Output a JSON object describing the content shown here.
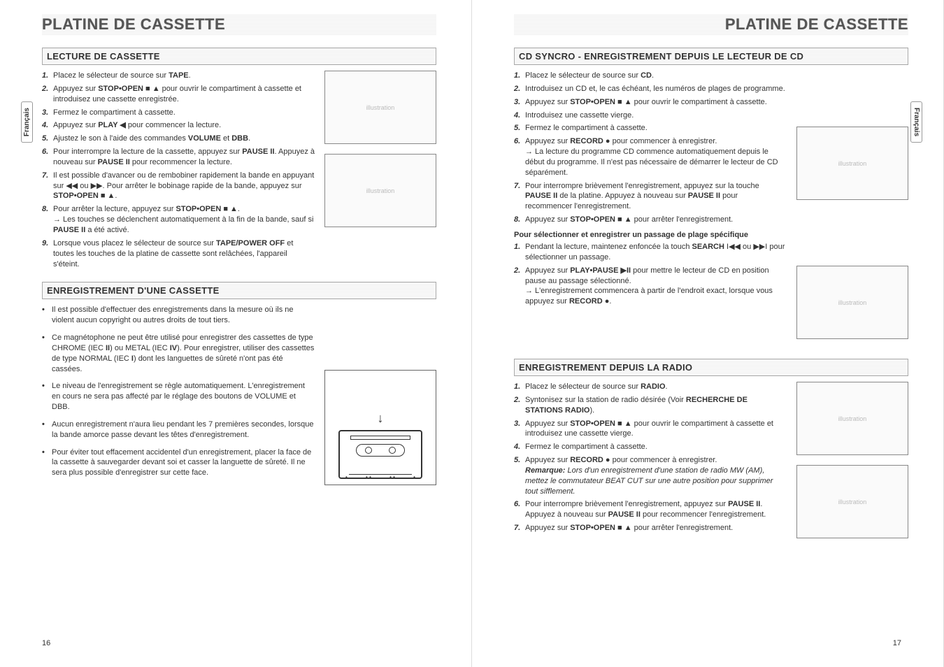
{
  "lang_tab": "Français",
  "page_left": {
    "title": "PLATINE DE CASSETTE",
    "page_number": "16",
    "section1": {
      "heading": "LECTURE DE CASSETTE",
      "items": [
        "Placez le sélecteur de source sur <b>TAPE</b>.",
        "Appuyez sur <b>STOP•OPEN ■ ▲</b> pour ouvrir le compartiment à cassette et introduisez une cassette enregistrée.",
        "Fermez le compartiment à cassette.",
        "Appuyez sur <b>PLAY ◀</b> pour commencer la lecture.",
        "Ajustez le son à l'aide des commandes <b>VOLUME</b> et <b>DBB</b>.",
        "Pour interrompre la lecture de la cassette, appuyez sur <b>PAUSE II</b>. Appuyez à nouveau sur <b>PAUSE II</b> pour recommencer la lecture.",
        "Il est possible d'avancer ou de rembobiner rapidement la bande en appuyant sur ◀◀ ou ▶▶. Pour arrêter le bobinage rapide de la bande, appuyez sur <b>STOP•OPEN ■ ▲</b>.",
        "Pour arrêter la lecture, appuyez sur <b>STOP•OPEN ■ ▲</b>.<br>→ Les touches se déclenchent automatiquement à la fin de la bande, sauf si <b>PAUSE II</b> a été activé.",
        "Lorsque vous placez le sélecteur de source sur <b>TAPE/POWER OFF</b> et toutes les touches de la platine de cassette sont relâchées, l'appareil s'éteint."
      ]
    },
    "section2": {
      "heading": "ENREGISTREMENT D'UNE CASSETTE",
      "bullets": [
        "Il est possible d'effectuer des enregistrements dans la mesure où ils ne violent aucun copyright ou autres droits de tout tiers.",
        "Ce magnétophone ne peut être utilisé pour enregistrer des cassettes de type CHROME (IEC <b>II</b>) ou METAL (IEC <b>IV</b>). Pour enregistrer, utiliser des cassettes de type NORMAL (IEC <b>I</b>) dont les languettes de sûreté n'ont pas été cassées.",
        "Le niveau de l'enregistrement se règle automatiquement. L'enregistrement en cours ne sera pas affecté par le réglage des boutons de VOLUME et DBB.",
        "Aucun enregistrement n'aura lieu pendant les 7 premières secondes, lorsque la bande amorce passe devant les têtes d'enregistrement.",
        "Pour éviter tout effacement accidentel d'un enregistrement, placer la face de la cassette à sauvegarder devant soi et casser la languette de sûreté. Il ne sera plus possible d'enregistrer sur cette face."
      ]
    }
  },
  "page_right": {
    "title": "PLATINE DE CASSETTE",
    "page_number": "17",
    "section1": {
      "heading": "CD SYNCRO - ENREGISTREMENT DEPUIS LE LECTEUR DE CD",
      "items": [
        "Placez le sélecteur de source sur <b>CD</b>.",
        "Introduisez un CD et, le cas échéant, les numéros de plages de programme.",
        "Appuyez sur <b>STOP•OPEN ■ ▲</b> pour ouvrir le compartiment à cassette.",
        "Introduisez une cassette vierge.",
        "Fermez le compartiment à cassette.",
        "Appuyez sur <b>RECORD ●</b> pour commencer à enregistrer.<br>→ La lecture du programme CD commence automatiquement depuis le début du programme. Il n'est pas nécessaire de démarrer le lecteur de CD séparément.",
        "Pour interrompre brièvement l'enregistrement, appuyez sur la touche <b>PAUSE II</b> de la platine. Appuyez à nouveau sur <b>PAUSE II</b> pour recommencer l'enregistrement.",
        "Appuyez sur <b>STOP•OPEN ■ ▲</b> pour arrêter l'enregistrement."
      ],
      "subhead": "Pour sélectionner et enregistrer un passage de plage spécifique",
      "sub_items": [
        "Pendant la lecture, maintenez enfoncée la touch <b>SEARCH</b> I◀◀ ou ▶▶I pour sélectionner un passage.",
        "Appuyez sur <b>PLAY•PAUSE ▶II</b> pour mettre le lecteur de CD en position pause au passage sélectionné.<br>→ L'enregistrement commencera à partir de l'endroit exact, lorsque vous appuyez sur <b>RECORD ●</b>."
      ]
    },
    "section2": {
      "heading": "ENREGISTREMENT DEPUIS LA RADIO",
      "items": [
        "Placez le sélecteur de source sur <b>RADIO</b>.",
        "Syntonisez sur la station de radio désirée (Voir <b>RECHERCHE DE STATIONS RADIO</b>).",
        "Appuyez sur <b>STOP•OPEN ■ ▲</b> pour ouvrir le compartiment à cassette et introduisez une cassette vierge.",
        "Fermez le compartiment à cassette.",
        "Appuyez sur <b>RECORD ●</b> pour commencer à enregistrer.<br><b><i>Remarque:</i></b> <i>Lors d'un enregistrement d'une station de radio MW (AM), mettez le commutateur BEAT CUT sur une autre position pour supprimer tout sifflement.</i>",
        "Pour interrompre brièvement l'enregistrement, appuyez sur <b>PAUSE II</b>. Appuyez à nouveau sur <b>PAUSE II</b> pour recommencer l'enregistrement.",
        "Appuyez sur <b>STOP•OPEN ■ ▲</b> pour arrêter l'enregistrement."
      ]
    }
  }
}
